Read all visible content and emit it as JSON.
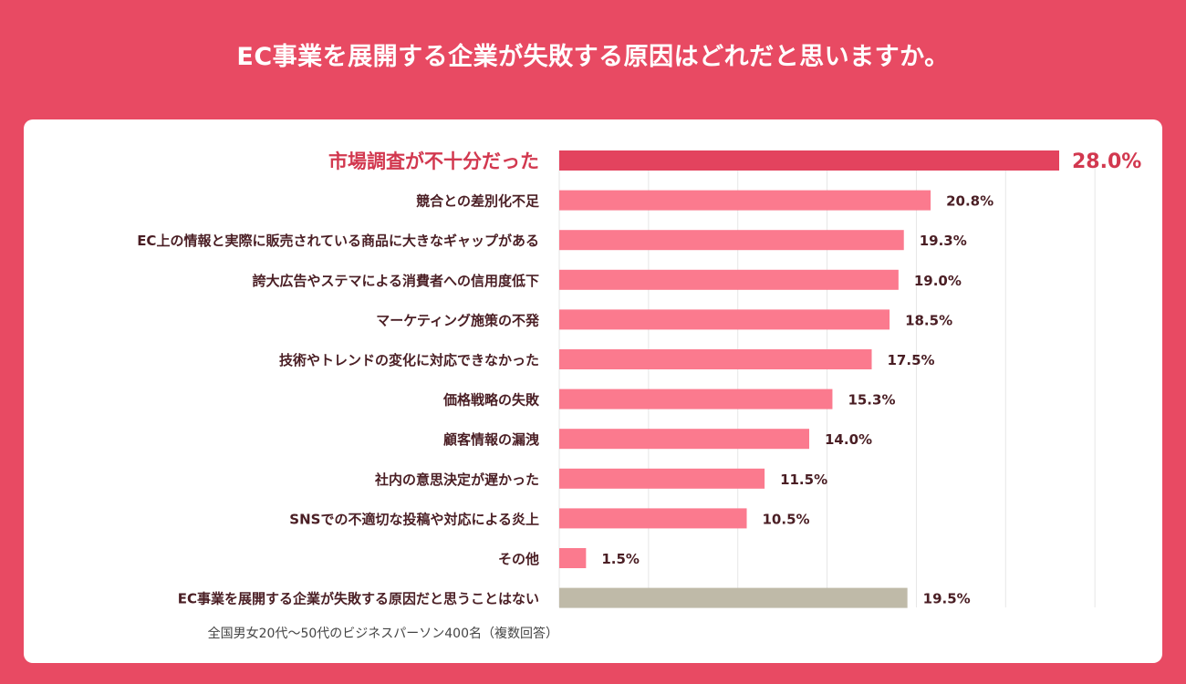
{
  "title": "EC事業を展開する企業が失敗する原因はどれだと思いますか。",
  "footnote": "全国男女20代〜50代のビジネスパーソン400名（複数回答）",
  "colors": {
    "background": "#e84a63",
    "bar": "#fb7a8e",
    "highlight_bar": "#e3435e",
    "highlight_text": "#d2384f",
    "none_bar": "#bfbaa8",
    "label_text": "#4a1e24",
    "grid": "#e6e6e6"
  },
  "chart_data": {
    "type": "bar",
    "orientation": "horizontal",
    "title": "EC事業を展開する企業が失敗する原因はどれだと思いますか。",
    "xlim": [
      0,
      30
    ],
    "grid": true,
    "unit": "%",
    "categories": [
      "市場調査が不十分だった",
      "競合との差別化不足",
      "EC上の情報と実際に販売されている商品に大きなギャップがある",
      "誇大広告やステマによる消費者への信用度低下",
      "マーケティング施策の不発",
      "技術やトレンドの変化に対応できなかった",
      "価格戦略の失敗",
      "顧客情報の漏洩",
      "社内の意思決定が遅かった",
      "SNSでの不適切な投稿や対応による炎上",
      "その他",
      "EC事業を展開する企業が失敗する原因だと思うことはない"
    ],
    "values": [
      28.0,
      20.8,
      19.3,
      19.0,
      18.5,
      17.5,
      15.3,
      14.0,
      11.5,
      10.5,
      1.5,
      19.5
    ],
    "value_labels": [
      "28.0%",
      "20.8%",
      "19.3%",
      "19.0%",
      "18.5%",
      "17.5%",
      "15.3%",
      "14.0%",
      "11.5%",
      "10.5%",
      "1.5%",
      "19.5%"
    ],
    "highlight_index": 0,
    "none_index": 11
  }
}
